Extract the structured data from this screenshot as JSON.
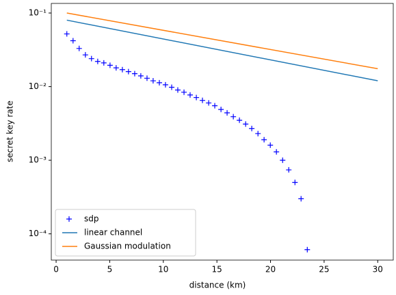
{
  "chart_data": {
    "type": "line",
    "log_y": true,
    "xlabel": "distance (km)",
    "ylabel": "secret key rate",
    "xlim": [
      -0.45,
      31.45
    ],
    "xticks": [
      0,
      5,
      10,
      15,
      20,
      25,
      30
    ],
    "ylim": [
      4.4e-05,
      0.135
    ],
    "yticks": [
      {
        "value": 0.0001,
        "label": "10⁻⁴"
      },
      {
        "value": 0.001,
        "label": "10⁻³"
      },
      {
        "value": 0.01,
        "label": "10⁻²"
      },
      {
        "value": 0.1,
        "label": "10⁻¹"
      }
    ],
    "legend": "lower left",
    "series": [
      {
        "name": "sdp",
        "color": "#0000ff",
        "marker": "+",
        "x": [
          1,
          1.58,
          2.15,
          2.73,
          3.3,
          3.88,
          4.45,
          5.03,
          5.6,
          6.18,
          6.75,
          7.33,
          7.9,
          8.48,
          9.05,
          9.63,
          10.2,
          10.78,
          11.35,
          11.93,
          12.5,
          13.08,
          13.65,
          14.23,
          14.8,
          15.38,
          15.95,
          16.53,
          17.1,
          17.68,
          18.25,
          18.83,
          19.4,
          19.98,
          20.55,
          21.13,
          21.7,
          22.28,
          22.85,
          23.43
        ],
        "values": [
          0.052,
          0.042,
          0.033,
          0.027,
          0.024,
          0.022,
          0.021,
          0.0195,
          0.018,
          0.017,
          0.016,
          0.015,
          0.014,
          0.013,
          0.012,
          0.0113,
          0.0106,
          0.0098,
          0.009,
          0.0084,
          0.0077,
          0.0071,
          0.0065,
          0.006,
          0.0055,
          0.0049,
          0.0044,
          0.0039,
          0.0035,
          0.0031,
          0.0027,
          0.0023,
          0.0019,
          0.0016,
          0.0013,
          0.001,
          0.00074,
          0.0005,
          0.0003,
          6.1e-05
        ]
      },
      {
        "name": "linear channel",
        "color": "#1f77b4",
        "x": [
          1,
          30
        ],
        "values": [
          0.08,
          0.012
        ]
      },
      {
        "name": "Gaussian modulation",
        "color": "#ff7f0e",
        "x": [
          1,
          30
        ],
        "values": [
          0.1,
          0.0175
        ]
      }
    ]
  }
}
